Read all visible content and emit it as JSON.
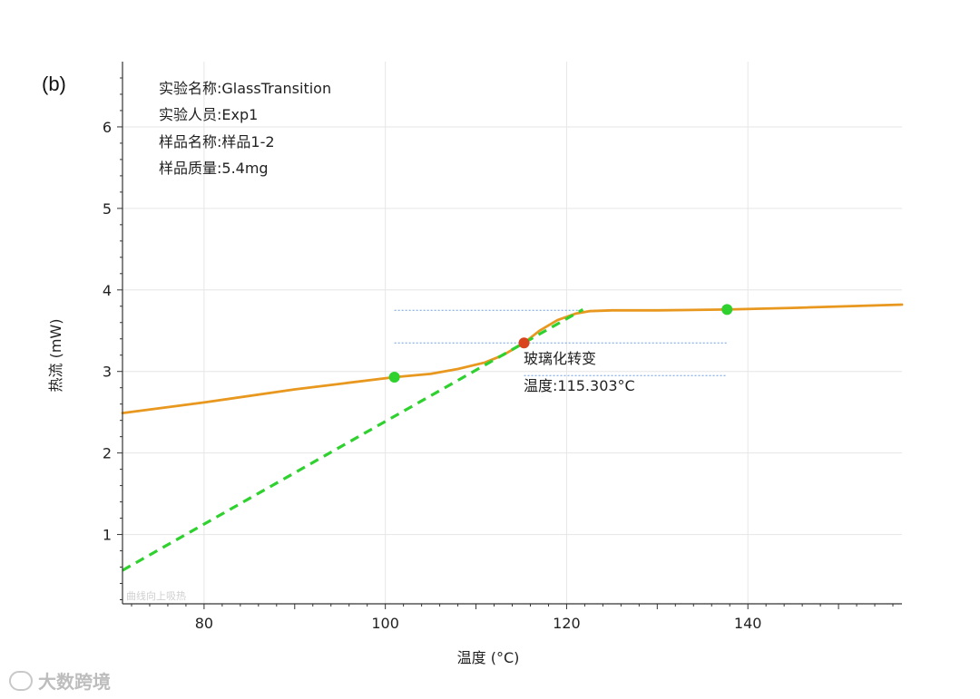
{
  "panel_label": "(b)",
  "info_lines": [
    "实验名称:GlassTransition",
    "实验人员:Exp1",
    "样品名称:样品1-2",
    "样品质量:5.4mg"
  ],
  "annotation": {
    "title": "玻璃化转变",
    "value": "温度:115.303°C"
  },
  "inner_watermark": "曲线向上吸热",
  "watermark": "大数跨境",
  "colors": {
    "curve": "#e8981f",
    "tangent": "#2fd12f",
    "marker_green": "#2fd12f",
    "marker_red": "#d9441f",
    "guides": "#6a9fe0",
    "grid": "#e6e6e6",
    "axis": "#333333"
  },
  "chart_data": {
    "type": "line",
    "xlabel": "温度 (°C)",
    "ylabel": "热流 (mW)",
    "xlim": [
      71,
      157
    ],
    "ylim": [
      0.15,
      6.8
    ],
    "xticks": [
      80,
      100,
      120,
      140
    ],
    "yticks": [
      1,
      2,
      3,
      4,
      5,
      6
    ],
    "grid": true,
    "series": [
      {
        "style": "solid",
        "points": [
          [
            71,
            2.49
          ],
          [
            80,
            2.62
          ],
          [
            90,
            2.78
          ],
          [
            101,
            2.93
          ],
          [
            105,
            2.97
          ],
          [
            108,
            3.03
          ],
          [
            111,
            3.11
          ],
          [
            113,
            3.2
          ],
          [
            115.3,
            3.35
          ],
          [
            117,
            3.5
          ],
          [
            119,
            3.63
          ],
          [
            121,
            3.71
          ],
          [
            122.5,
            3.74
          ],
          [
            125,
            3.75
          ],
          [
            130,
            3.75
          ],
          [
            137.7,
            3.76
          ],
          [
            145,
            3.78
          ],
          [
            157,
            3.82
          ]
        ]
      },
      {
        "style": "dashed",
        "points": [
          [
            71,
            0.56
          ],
          [
            121.8,
            3.76
          ]
        ]
      }
    ],
    "markers": [
      {
        "kind": "onset",
        "x": 101,
        "y": 2.93
      },
      {
        "kind": "midpoint",
        "x": 115.303,
        "y": 3.35
      },
      {
        "kind": "endset",
        "x": 137.7,
        "y": 3.76
      }
    ],
    "guide_lines": [
      {
        "y": 3.75,
        "x_from": 101,
        "x_to": 121.8
      },
      {
        "y": 3.35,
        "x_from": 101,
        "x_to": 137.7
      },
      {
        "y": 2.95,
        "x_from": 115.3,
        "x_to": 137.7
      }
    ]
  }
}
